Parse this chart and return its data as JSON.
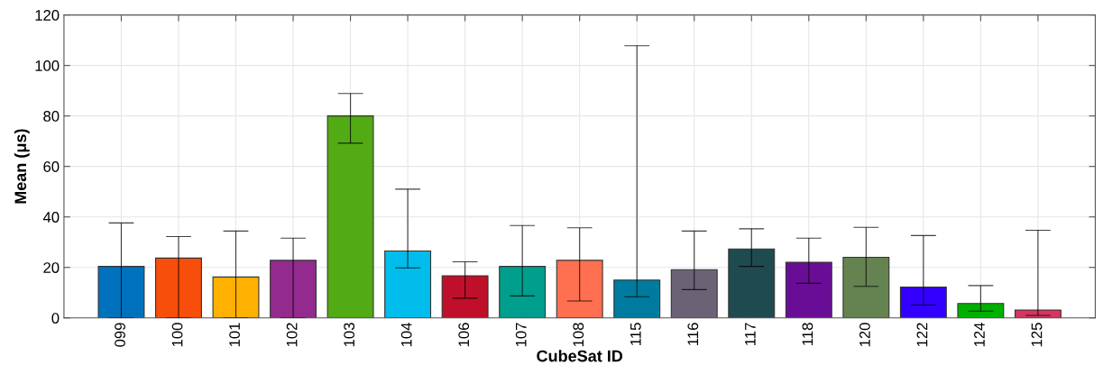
{
  "chart_data": {
    "type": "bar",
    "xlabel": "CubeSat ID",
    "ylabel": "Mean (μs)",
    "categories": [
      "099",
      "100",
      "101",
      "102",
      "103",
      "104",
      "106",
      "107",
      "108",
      "115",
      "116",
      "117",
      "118",
      "120",
      "122",
      "124",
      "125"
    ],
    "values": [
      20.4,
      23.7,
      16.2,
      22.8,
      80.0,
      26.5,
      16.7,
      20.4,
      22.8,
      15.0,
      19.1,
      27.3,
      22.0,
      24.0,
      12.2,
      5.7,
      3.1
    ],
    "errors": [
      [
        0,
        37.6
      ],
      [
        0,
        32.2
      ],
      [
        0,
        34.4
      ],
      [
        0,
        31.6
      ],
      [
        69.2,
        88.9
      ],
      [
        19.8,
        51.0
      ],
      [
        7.8,
        22.2
      ],
      [
        8.7,
        36.6
      ],
      [
        6.7,
        35.7
      ],
      [
        8.4,
        107.8
      ],
      [
        11.2,
        34.4
      ],
      [
        20.4,
        35.3
      ],
      [
        13.7,
        31.6
      ],
      [
        12.5,
        35.9
      ],
      [
        5.1,
        32.6
      ],
      [
        2.7,
        12.8
      ],
      [
        1.0,
        34.7
      ]
    ],
    "colors": [
      "#0072bd",
      "#f74f0b",
      "#ffb000",
      "#922b8d",
      "#52ab14",
      "#00bdeb",
      "#bf0f2b",
      "#009e8c",
      "#ff7050",
      "#007a9e",
      "#6b6375",
      "#1f4a50",
      "#6a0d96",
      "#658350",
      "#3300ff",
      "#00b000",
      "#d63560"
    ],
    "ylim": [
      0,
      120
    ],
    "yticks": [
      0,
      20,
      40,
      60,
      80,
      100,
      120
    ],
    "grid": true
  }
}
